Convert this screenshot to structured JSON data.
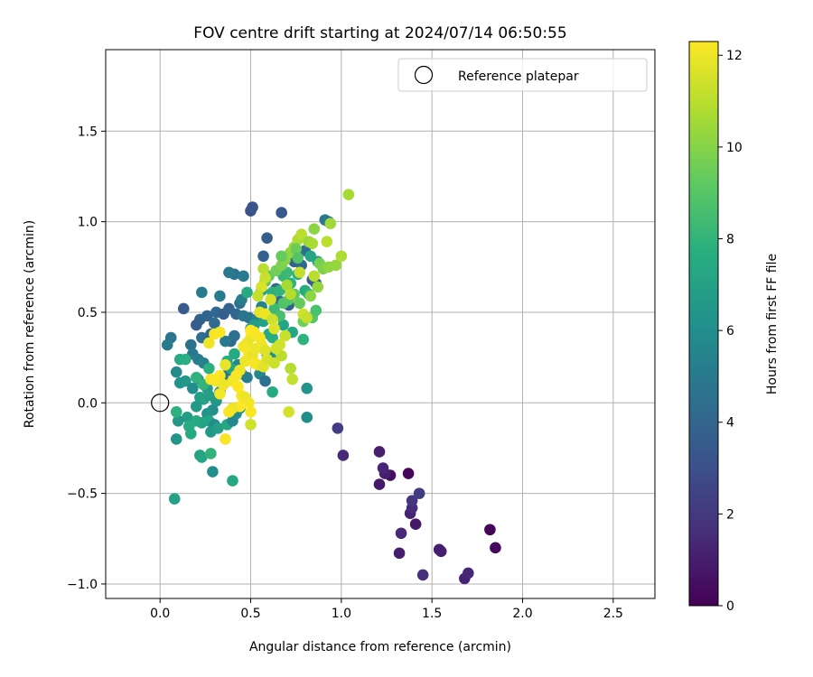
{
  "chart_data": {
    "type": "scatter",
    "title": "FOV centre drift starting at 2024/07/14 06:50:55",
    "xlabel": "Angular distance from reference (arcmin)",
    "ylabel": "Rotation from reference (arcmin)",
    "xlim": [
      -0.3,
      2.73
    ],
    "ylim": [
      -1.08,
      1.95
    ],
    "x_ticks": [
      0.0,
      0.5,
      1.0,
      1.5,
      2.0,
      2.5
    ],
    "x_tick_labels": [
      "0.0",
      "0.5",
      "1.0",
      "1.5",
      "2.0",
      "2.5"
    ],
    "y_ticks": [
      -1.0,
      -0.5,
      0.0,
      0.5,
      1.0,
      1.5
    ],
    "y_tick_labels": [
      "−1.0",
      "−0.5",
      "0.0",
      "0.5",
      "1.0",
      "1.5"
    ],
    "grid": true,
    "legend": {
      "label": "Reference platepar",
      "placement": "top-right"
    },
    "reference_point": {
      "x": 0.0,
      "y": 0.0,
      "marker": "open-circle"
    },
    "colorbar": {
      "label": "Hours from first FF file",
      "colormap": "viridis",
      "range": [
        0,
        12.3
      ],
      "ticks": [
        0,
        2,
        4,
        6,
        8,
        10,
        12
      ],
      "tick_labels": [
        "0",
        "2",
        "4",
        "6",
        "8",
        "10",
        "12"
      ]
    },
    "points": [
      [
        1.82,
        -0.7,
        0.1
      ],
      [
        1.85,
        -0.8,
        0.3
      ],
      [
        1.68,
        -0.97,
        1.2
      ],
      [
        1.7,
        -0.94,
        1.3
      ],
      [
        1.55,
        -0.82,
        1.0
      ],
      [
        1.54,
        -0.81,
        1.1
      ],
      [
        1.45,
        -0.95,
        1.6
      ],
      [
        1.41,
        -0.67,
        0.8
      ],
      [
        1.38,
        -0.61,
        1.2
      ],
      [
        1.39,
        -0.58,
        1.5
      ],
      [
        1.39,
        -0.54,
        1.9
      ],
      [
        1.43,
        -0.5,
        2.2
      ],
      [
        1.37,
        -0.39,
        0.2
      ],
      [
        1.33,
        -0.72,
        1.4
      ],
      [
        1.32,
        -0.83,
        1.0
      ],
      [
        1.27,
        -0.4,
        0.5
      ],
      [
        1.24,
        -0.39,
        1.1
      ],
      [
        1.23,
        -0.36,
        1.3
      ],
      [
        1.21,
        -0.27,
        1.0
      ],
      [
        1.21,
        -0.45,
        0.8
      ],
      [
        1.01,
        -0.29,
        1.4
      ],
      [
        0.98,
        -0.14,
        2.2
      ],
      [
        0.5,
        1.06,
        3.0
      ],
      [
        0.51,
        1.08,
        3.2
      ],
      [
        0.67,
        1.05,
        3.4
      ],
      [
        0.59,
        0.91,
        3.6
      ],
      [
        0.57,
        0.81,
        3.9
      ],
      [
        0.72,
        0.82,
        3.5
      ],
      [
        0.74,
        0.78,
        3.8
      ],
      [
        0.78,
        0.76,
        4.2
      ],
      [
        0.8,
        0.84,
        4.4
      ],
      [
        0.91,
        1.01,
        4.8
      ],
      [
        0.93,
        1.0,
        5.0
      ],
      [
        0.84,
        0.68,
        3.6
      ],
      [
        0.86,
        0.66,
        3.9
      ],
      [
        0.64,
        0.63,
        4.1
      ],
      [
        0.66,
        0.56,
        4.0
      ],
      [
        0.71,
        0.54,
        3.8
      ],
      [
        0.13,
        0.52,
        3.5
      ],
      [
        0.2,
        0.43,
        3.6
      ],
      [
        0.22,
        0.46,
        3.8
      ],
      [
        0.26,
        0.48,
        4.0
      ],
      [
        0.31,
        0.5,
        4.2
      ],
      [
        0.35,
        0.49,
        3.7
      ],
      [
        0.38,
        0.52,
        3.9
      ],
      [
        0.42,
        0.49,
        4.1
      ],
      [
        0.44,
        0.55,
        4.5
      ],
      [
        0.41,
        0.71,
        4.6
      ],
      [
        0.46,
        0.7,
        5.0
      ],
      [
        0.38,
        0.72,
        4.9
      ],
      [
        0.23,
        0.61,
        5.0
      ],
      [
        0.33,
        0.59,
        5.1
      ],
      [
        0.45,
        0.57,
        5.2
      ],
      [
        0.46,
        0.48,
        4.8
      ],
      [
        0.49,
        0.47,
        4.7
      ],
      [
        0.53,
        0.46,
        5.3
      ],
      [
        0.56,
        0.53,
        5.4
      ],
      [
        0.39,
        0.34,
        4.2
      ],
      [
        0.06,
        0.36,
        4.8
      ],
      [
        0.04,
        0.32,
        5.0
      ],
      [
        0.17,
        0.32,
        4.6
      ],
      [
        0.23,
        0.36,
        4.4
      ],
      [
        0.28,
        0.38,
        4.0
      ],
      [
        0.3,
        0.44,
        4.3
      ],
      [
        0.31,
        0.39,
        4.7
      ],
      [
        0.36,
        0.34,
        5.0
      ],
      [
        0.41,
        0.37,
        4.4
      ],
      [
        0.18,
        0.27,
        4.9
      ],
      [
        0.21,
        0.24,
        5.1
      ],
      [
        0.24,
        0.22,
        5.4
      ],
      [
        0.35,
        0.13,
        5.0
      ],
      [
        0.38,
        0.18,
        4.6
      ],
      [
        0.43,
        0.21,
        5.5
      ],
      [
        0.45,
        0.16,
        5.6
      ],
      [
        0.48,
        0.14,
        5.2
      ],
      [
        0.55,
        0.16,
        5.6
      ],
      [
        0.58,
        0.12,
        4.5
      ],
      [
        0.59,
        0.27,
        6.0
      ],
      [
        0.61,
        0.25,
        6.1
      ],
      [
        0.09,
        0.17,
        5.8
      ],
      [
        0.11,
        0.11,
        6.2
      ],
      [
        0.14,
        0.12,
        6.5
      ],
      [
        0.18,
        0.08,
        6.0
      ],
      [
        0.21,
        0.13,
        6.3
      ],
      [
        0.26,
        0.08,
        6.6
      ],
      [
        0.33,
        0.06,
        6.2
      ],
      [
        0.22,
        0.03,
        6.8
      ],
      [
        0.24,
        0.02,
        7.0
      ],
      [
        0.27,
        0.04,
        6.9
      ],
      [
        0.31,
        0.01,
        6.5
      ],
      [
        0.29,
        -0.04,
        6.1
      ],
      [
        0.26,
        -0.06,
        6.3
      ],
      [
        0.2,
        -0.02,
        6.6
      ],
      [
        0.15,
        -0.08,
        6.8
      ],
      [
        0.1,
        -0.1,
        6.5
      ],
      [
        0.23,
        -0.11,
        7.1
      ],
      [
        0.27,
        -0.1,
        7.2
      ],
      [
        0.3,
        -0.12,
        6.0
      ],
      [
        0.28,
        -0.16,
        6.5
      ],
      [
        0.32,
        -0.14,
        6.9
      ],
      [
        0.37,
        -0.12,
        7.3
      ],
      [
        0.4,
        -0.1,
        5.6
      ],
      [
        0.42,
        -0.06,
        5.9
      ],
      [
        0.44,
        -0.03,
        6.1
      ],
      [
        0.2,
        -0.1,
        7.4
      ],
      [
        0.16,
        -0.13,
        7.6
      ],
      [
        0.17,
        -0.17,
        7.5
      ],
      [
        0.22,
        -0.29,
        7.0
      ],
      [
        0.23,
        -0.3,
        7.2
      ],
      [
        0.09,
        -0.05,
        7.8
      ],
      [
        0.09,
        -0.2,
        6.4
      ],
      [
        0.29,
        -0.38,
        6.0
      ],
      [
        0.28,
        -0.28,
        8.0
      ],
      [
        0.4,
        -0.43,
        7.3
      ],
      [
        0.08,
        -0.53,
        7.0
      ],
      [
        0.11,
        0.24,
        7.5
      ],
      [
        0.14,
        0.24,
        7.7
      ],
      [
        0.2,
        0.14,
        7.9
      ],
      [
        0.24,
        0.1,
        8.0
      ],
      [
        0.27,
        0.19,
        7.8
      ],
      [
        0.37,
        0.23,
        7.6
      ],
      [
        0.39,
        0.19,
        7.2
      ],
      [
        0.41,
        0.27,
        7.4
      ],
      [
        0.5,
        0.41,
        6.5
      ],
      [
        0.52,
        0.43,
        6.8
      ],
      [
        0.57,
        0.45,
        7.0
      ],
      [
        0.6,
        0.38,
        7.4
      ],
      [
        0.62,
        0.36,
        7.6
      ],
      [
        0.68,
        0.43,
        7.1
      ],
      [
        0.73,
        0.39,
        7.3
      ],
      [
        0.79,
        0.35,
        7.9
      ],
      [
        0.81,
        0.08,
        6.3
      ],
      [
        0.81,
        -0.08,
        6.0
      ],
      [
        0.62,
        0.06,
        7.5
      ],
      [
        0.48,
        0.61,
        7.4
      ],
      [
        0.56,
        0.62,
        7.0
      ],
      [
        0.62,
        0.61,
        7.8
      ],
      [
        0.66,
        0.62,
        8.0
      ],
      [
        0.68,
        0.7,
        8.1
      ],
      [
        0.7,
        0.72,
        8.2
      ],
      [
        0.72,
        0.66,
        7.9
      ],
      [
        0.76,
        0.71,
        7.6
      ],
      [
        0.8,
        0.62,
        7.4
      ],
      [
        0.82,
        0.6,
        7.8
      ],
      [
        0.83,
        0.81,
        7.2
      ],
      [
        0.87,
        0.78,
        7.0
      ],
      [
        0.63,
        0.52,
        8.3
      ],
      [
        0.66,
        0.48,
        8.6
      ],
      [
        0.68,
        0.55,
        8.8
      ],
      [
        0.71,
        0.57,
        9.0
      ],
      [
        0.74,
        0.6,
        9.2
      ],
      [
        0.77,
        0.55,
        9.4
      ],
      [
        0.79,
        0.45,
        9.6
      ],
      [
        0.84,
        0.47,
        9.0
      ],
      [
        0.86,
        0.51,
        8.7
      ],
      [
        0.58,
        0.67,
        9.0
      ],
      [
        0.6,
        0.7,
        9.3
      ],
      [
        0.64,
        0.73,
        9.6
      ],
      [
        0.67,
        0.76,
        9.8
      ],
      [
        0.69,
        0.79,
        10.0
      ],
      [
        0.72,
        0.83,
        10.2
      ],
      [
        0.74,
        0.86,
        10.5
      ],
      [
        0.76,
        0.9,
        10.8
      ],
      [
        0.78,
        0.93,
        11.0
      ],
      [
        0.82,
        0.89,
        10.4
      ],
      [
        0.84,
        0.88,
        10.7
      ],
      [
        0.85,
        0.96,
        10.1
      ],
      [
        0.88,
        0.77,
        9.7
      ],
      [
        0.9,
        0.74,
        9.9
      ],
      [
        0.93,
        0.75,
        10.2
      ],
      [
        0.94,
        0.99,
        10.5
      ],
      [
        0.97,
        0.76,
        10.3
      ],
      [
        1.0,
        0.81,
        10.8
      ],
      [
        1.04,
        1.15,
        10.6
      ],
      [
        0.92,
        0.89,
        11.0
      ],
      [
        0.7,
        0.65,
        10.6
      ],
      [
        0.72,
        0.6,
        10.9
      ],
      [
        0.77,
        0.72,
        11.2
      ],
      [
        0.85,
        0.7,
        11.0
      ],
      [
        0.87,
        0.64,
        10.3
      ],
      [
        0.83,
        0.59,
        10.1
      ],
      [
        0.79,
        0.49,
        11.4
      ],
      [
        0.81,
        0.47,
        11.2
      ],
      [
        0.57,
        0.74,
        11.0
      ],
      [
        0.58,
        0.69,
        11.3
      ],
      [
        0.56,
        0.64,
        11.6
      ],
      [
        0.54,
        0.59,
        11.2
      ],
      [
        0.61,
        0.57,
        11.5
      ],
      [
        0.55,
        0.5,
        11.8
      ],
      [
        0.58,
        0.49,
        12.0
      ],
      [
        0.62,
        0.46,
        11.4
      ],
      [
        0.63,
        0.41,
        11.7
      ],
      [
        0.69,
        0.37,
        11.3
      ],
      [
        0.67,
        0.26,
        11.0
      ],
      [
        0.72,
        0.19,
        10.9
      ],
      [
        0.73,
        0.13,
        11.2
      ],
      [
        0.71,
        -0.05,
        11.5
      ],
      [
        0.5,
        -0.12,
        11.4
      ],
      [
        0.5,
        0.36,
        12.0
      ],
      [
        0.52,
        0.39,
        12.1
      ],
      [
        0.55,
        0.36,
        12.2
      ],
      [
        0.56,
        0.32,
        12.0
      ],
      [
        0.48,
        0.33,
        11.9
      ],
      [
        0.46,
        0.31,
        12.1
      ],
      [
        0.49,
        0.27,
        12.2
      ],
      [
        0.51,
        0.26,
        11.9
      ],
      [
        0.47,
        0.23,
        12.0
      ],
      [
        0.52,
        0.22,
        12.2
      ],
      [
        0.54,
        0.21,
        12.1
      ],
      [
        0.57,
        0.2,
        11.8
      ],
      [
        0.59,
        0.24,
        11.6
      ],
      [
        0.44,
        0.18,
        12.0
      ],
      [
        0.42,
        0.15,
        12.2
      ],
      [
        0.4,
        0.12,
        12.1
      ],
      [
        0.43,
        0.09,
        12.3
      ],
      [
        0.45,
        0.04,
        12.2
      ],
      [
        0.47,
        0.03,
        12.0
      ],
      [
        0.49,
        0.0,
        12.1
      ],
      [
        0.5,
        -0.05,
        12.2
      ],
      [
        0.44,
        -0.02,
        12.3
      ],
      [
        0.4,
        -0.03,
        12.0
      ],
      [
        0.38,
        -0.05,
        12.2
      ],
      [
        0.31,
        0.12,
        12.1
      ],
      [
        0.28,
        0.13,
        12.2
      ],
      [
        0.33,
        0.15,
        12.3
      ],
      [
        0.35,
        0.1,
        12.0
      ],
      [
        0.27,
        0.33,
        12.0
      ],
      [
        0.3,
        0.38,
        12.1
      ],
      [
        0.33,
        0.39,
        12.2
      ],
      [
        0.36,
        0.21,
        11.9
      ],
      [
        0.33,
        0.05,
        12.1
      ],
      [
        0.36,
        -0.2,
        12.2
      ],
      [
        0.5,
        0.4,
        12.3
      ],
      [
        0.53,
        0.3,
        12.0
      ],
      [
        0.58,
        0.29,
        11.7
      ],
      [
        0.64,
        0.3,
        11.5
      ],
      [
        0.66,
        0.32,
        11.4
      ],
      [
        0.63,
        0.22,
        11.3
      ],
      [
        0.75,
        0.85,
        9.5
      ],
      [
        0.67,
        0.81,
        9.4
      ],
      [
        0.76,
        0.8,
        8.9
      ]
    ]
  }
}
